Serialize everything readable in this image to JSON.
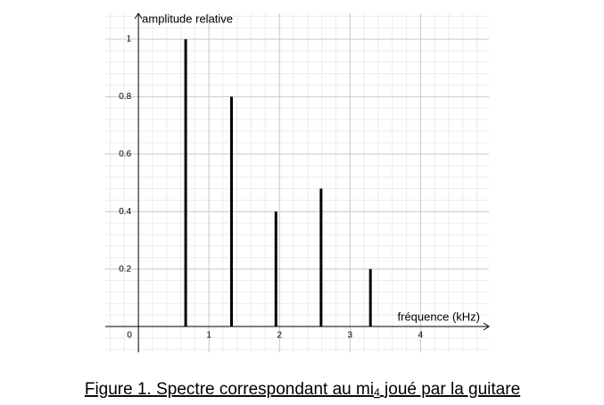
{
  "chart_data": {
    "type": "bar",
    "y_label": "amplitude relative",
    "x_label": "fréquence (kHz)",
    "x": [
      0.67,
      1.32,
      1.95,
      2.59,
      3.29
    ],
    "values": [
      1,
      0.8,
      0.4,
      0.48,
      0.2
    ],
    "color": "#000000",
    "xlim": [
      -0.47,
      4.97
    ],
    "ylim": [
      -0.09,
      1.09
    ],
    "xticks": [
      0,
      1,
      2,
      3,
      4
    ],
    "yticks": [
      0.2,
      0.4,
      0.6,
      0.8,
      1
    ],
    "grid": true
  },
  "caption": {
    "text": "Figure 1. Spectre correspondant au mi",
    "subscript": "4",
    "rest": " joué par la guitare"
  }
}
